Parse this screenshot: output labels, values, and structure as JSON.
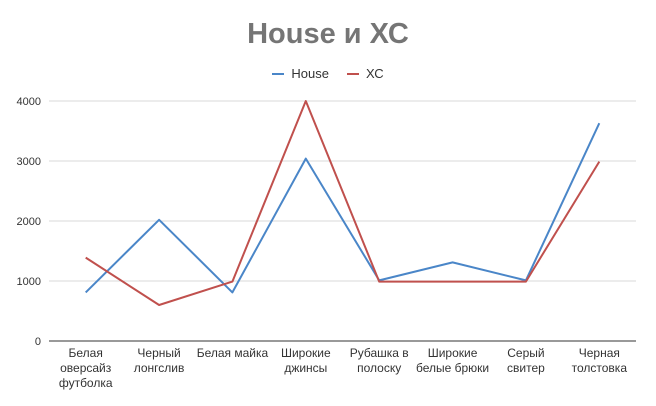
{
  "chart_data": {
    "type": "line",
    "title": "House и ХС",
    "categories": [
      [
        "Белая",
        "оверсайз",
        "футболка"
      ],
      [
        "Черный",
        "лонгслив"
      ],
      [
        "Белая майка"
      ],
      [
        "Широкие",
        "джинсы"
      ],
      [
        "Рубашка в",
        "полоску"
      ],
      [
        "Широкие",
        "белые брюки"
      ],
      [
        "Серый",
        "свитер"
      ],
      [
        "Черная",
        "толстовка"
      ]
    ],
    "series": [
      {
        "name": "House",
        "color": "#4a86c8",
        "values": [
          810,
          2020,
          810,
          3040,
          1010,
          1310,
          1010,
          3630
        ]
      },
      {
        "name": "ХС",
        "color": "#c0504d",
        "values": [
          1390,
          600,
          990,
          4000,
          990,
          990,
          990,
          2990
        ]
      }
    ],
    "yticks": [
      "0",
      "1000",
      "2000",
      "3000",
      "4000"
    ],
    "ylim": [
      0,
      4000
    ],
    "grid": true,
    "legend_position": "top",
    "xlabel": "",
    "ylabel": ""
  }
}
